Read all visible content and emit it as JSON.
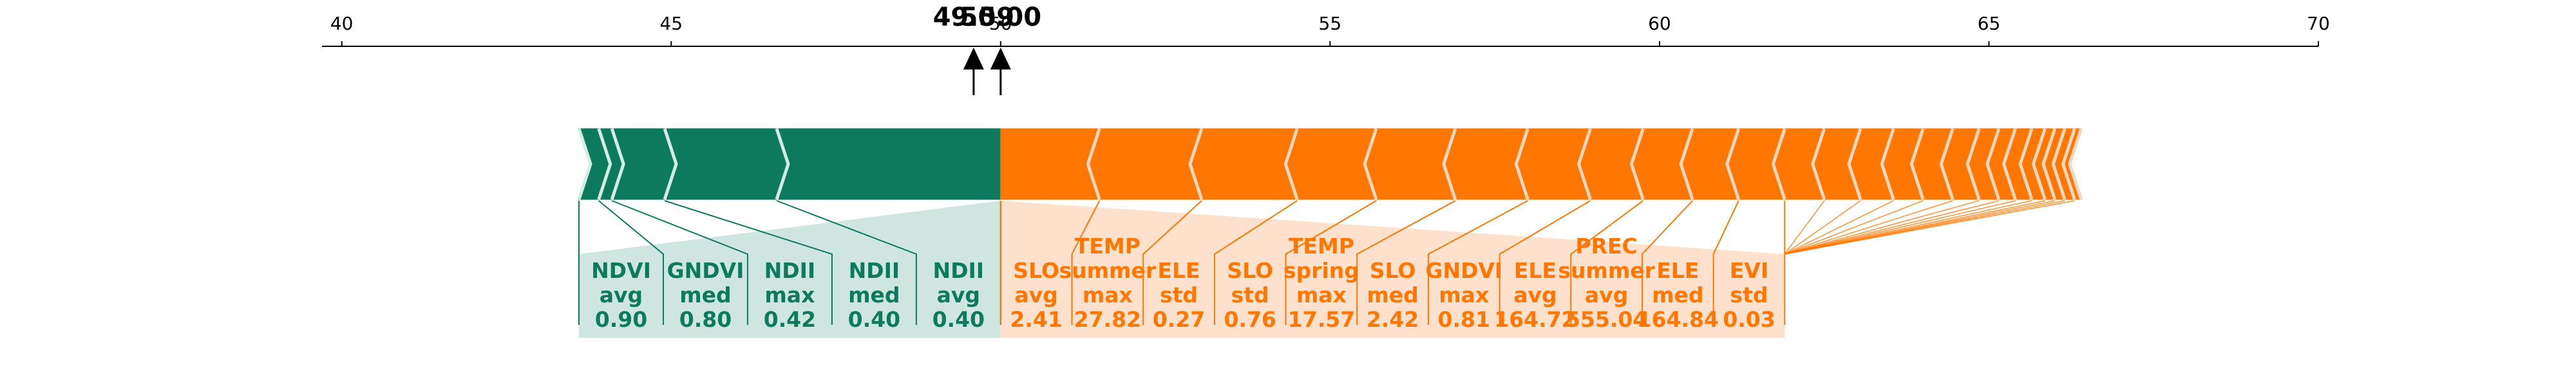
{
  "chart_data": {
    "type": "force",
    "xlim": [
      39.7,
      70
    ],
    "ticks": [
      40,
      45,
      50,
      55,
      60,
      65,
      70
    ],
    "tick_labels": [
      "40",
      "45",
      "50",
      "55",
      "60",
      "65",
      "70"
    ],
    "base_value": "49.59",
    "output_value": "50.00",
    "base_position": 49.59,
    "output_position": 50.0,
    "colors": {
      "positive": "#0c7a5c",
      "positive_light": "#cfe5df",
      "negative": "#ff7700",
      "negative_light": "#fde1cc",
      "separator": "#f2d8c0"
    },
    "positive_features": [
      {
        "name": "NDVI",
        "stat": "avg",
        "value": "0.90",
        "start": 43.6,
        "end": 43.9
      },
      {
        "name": "GNDVI",
        "stat": "med",
        "value": "0.80",
        "start": 43.9,
        "end": 44.1
      },
      {
        "name": "NDII",
        "stat": "max",
        "value": "0.42",
        "start": 44.1,
        "end": 44.9
      },
      {
        "name": "NDII",
        "stat": "med",
        "value": "0.40",
        "start": 44.9,
        "end": 46.6
      },
      {
        "name": "NDII",
        "stat": "avg",
        "value": "0.40",
        "start": 46.6,
        "end": 50.0
      }
    ],
    "negative_features": [
      {
        "name": "SLO",
        "stat": "avg",
        "value": "2.41",
        "start": 50.0,
        "end": 51.5
      },
      {
        "name": "TEMP",
        "stat": "summer max",
        "value": "27.82",
        "start": 51.5,
        "end": 53.05
      },
      {
        "name": "ELE",
        "stat": "std",
        "value": "0.27",
        "start": 53.05,
        "end": 54.5
      },
      {
        "name": "SLO",
        "stat": "std",
        "value": "0.76",
        "start": 54.5,
        "end": 55.7
      },
      {
        "name": "TEMP",
        "stat": "spring max",
        "value": "17.57",
        "start": 55.7,
        "end": 56.9
      },
      {
        "name": "SLO",
        "stat": "med",
        "value": "2.42",
        "start": 56.9,
        "end": 58.0
      },
      {
        "name": "GNDVI",
        "stat": "max",
        "value": "0.81",
        "start": 58.0,
        "end": 58.95
      },
      {
        "name": "ELE",
        "stat": "avg",
        "value": "164.72",
        "start": 58.95,
        "end": 59.75
      },
      {
        "name": "PREC",
        "stat": "summer avg",
        "value": "555.04",
        "start": 59.75,
        "end": 60.5
      },
      {
        "name": "ELE",
        "stat": "med",
        "value": "164.84",
        "start": 60.5,
        "end": 61.2
      },
      {
        "name": "EVI",
        "stat": "std",
        "value": "0.03",
        "start": 61.2,
        "end": 61.9
      },
      {
        "start": 61.9,
        "end": 62.5
      },
      {
        "start": 62.5,
        "end": 63.05
      },
      {
        "start": 63.05,
        "end": 63.55
      },
      {
        "start": 63.55,
        "end": 64.0
      },
      {
        "start": 64.0,
        "end": 64.45
      },
      {
        "start": 64.45,
        "end": 64.85
      },
      {
        "start": 64.85,
        "end": 65.15
      },
      {
        "start": 65.15,
        "end": 65.4
      },
      {
        "start": 65.4,
        "end": 65.65
      },
      {
        "start": 65.65,
        "end": 65.85
      },
      {
        "start": 65.85,
        "end": 66.0
      },
      {
        "start": 66.0,
        "end": 66.15
      },
      {
        "start": 66.15,
        "end": 66.3
      },
      {
        "start": 66.3,
        "end": 66.4
      }
    ]
  }
}
